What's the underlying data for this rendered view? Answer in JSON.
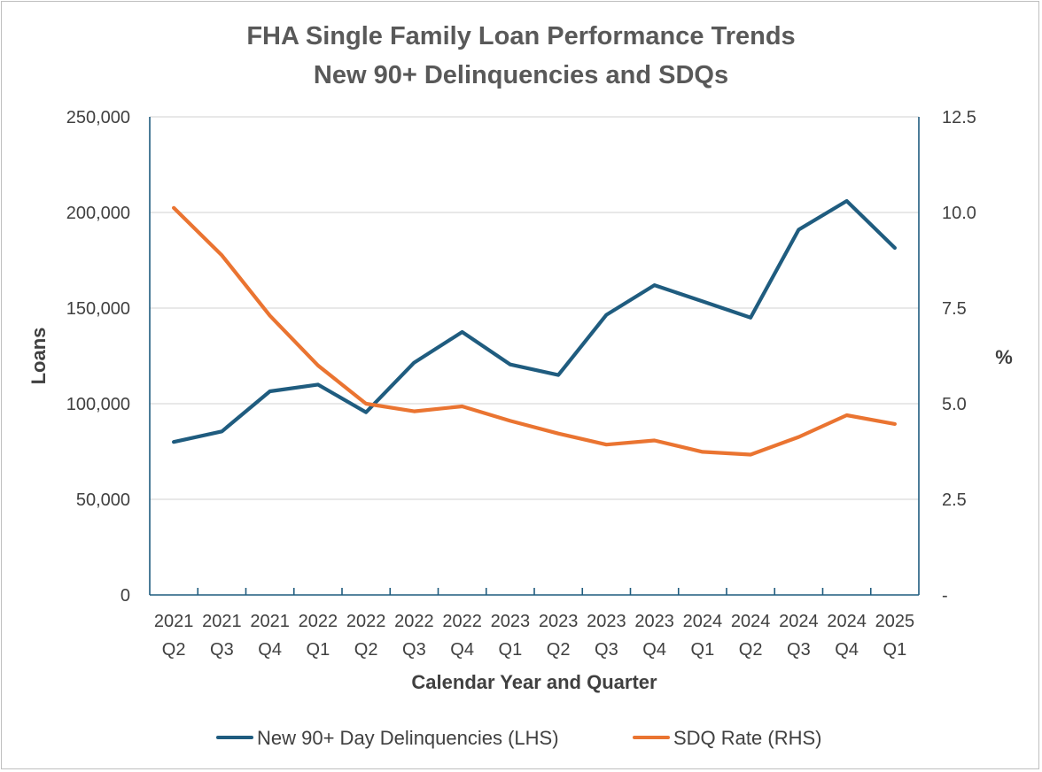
{
  "chart_data": {
    "type": "line",
    "title": [
      "FHA Single Family Loan Performance Trends",
      "New 90+ Delinquencies and SDQs"
    ],
    "xlabel": "Calendar Year and Quarter",
    "ylabel_left": "Loans",
    "ylabel_right": "%",
    "categories": [
      {
        "year": "2021",
        "quarter": "Q2"
      },
      {
        "year": "2021",
        "quarter": "Q3"
      },
      {
        "year": "2021",
        "quarter": "Q4"
      },
      {
        "year": "2022",
        "quarter": "Q1"
      },
      {
        "year": "2022",
        "quarter": "Q2"
      },
      {
        "year": "2022",
        "quarter": "Q3"
      },
      {
        "year": "2022",
        "quarter": "Q4"
      },
      {
        "year": "2023",
        "quarter": "Q1"
      },
      {
        "year": "2023",
        "quarter": "Q2"
      },
      {
        "year": "2023",
        "quarter": "Q3"
      },
      {
        "year": "2023",
        "quarter": "Q4"
      },
      {
        "year": "2024",
        "quarter": "Q1"
      },
      {
        "year": "2024",
        "quarter": "Q2"
      },
      {
        "year": "2024",
        "quarter": "Q3"
      },
      {
        "year": "2024",
        "quarter": "Q4"
      },
      {
        "year": "2025",
        "quarter": "Q1"
      }
    ],
    "left_axis": {
      "min": 0,
      "max": 250000,
      "ticks": [
        0,
        50000,
        100000,
        150000,
        200000,
        250000
      ],
      "tick_labels": [
        "0",
        "50,000",
        "100,000",
        "150,000",
        "200,000",
        "250,000"
      ]
    },
    "right_axis": {
      "min": 0,
      "max": 12.5,
      "ticks": [
        0,
        2.5,
        5.0,
        7.5,
        10.0,
        12.5
      ],
      "tick_labels": [
        "-",
        "2.5",
        "5.0",
        "7.5",
        "10.0",
        "12.5"
      ]
    },
    "series": [
      {
        "name": "New 90+ Day Delinquencies (LHS)",
        "axis": "left",
        "color": "#1f5c7f",
        "values": [
          80000,
          85500,
          106500,
          110000,
          95500,
          121500,
          137500,
          120500,
          115000,
          146500,
          162000,
          153500,
          145000,
          191000,
          206000,
          181500
        ]
      },
      {
        "name": "SDQ Rate (RHS)",
        "axis": "right",
        "color": "#ea7431",
        "values": [
          10.12,
          8.88,
          7.3,
          6.0,
          5.0,
          4.8,
          4.93,
          4.55,
          4.22,
          3.93,
          4.04,
          3.74,
          3.67,
          4.13,
          4.7,
          4.47
        ]
      }
    ],
    "grid": true,
    "legend_position": "bottom"
  }
}
